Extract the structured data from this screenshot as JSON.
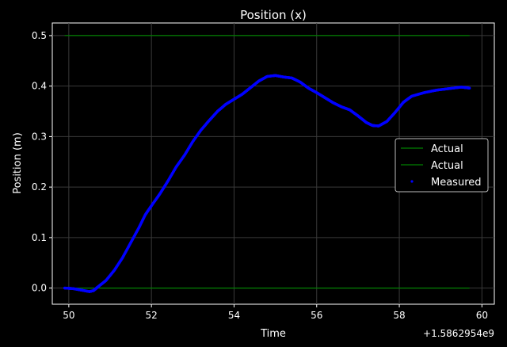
{
  "chart_data": {
    "type": "line",
    "title": "Position (x)",
    "xlabel": "Time",
    "ylabel": "Position (m)",
    "x_offset_label": "+1.5862954e9",
    "xlim": [
      49.6,
      60.3
    ],
    "ylim": [
      -0.032,
      0.525
    ],
    "xticks": [
      50,
      52,
      54,
      56,
      58,
      60
    ],
    "yticks": [
      0.0,
      0.1,
      0.2,
      0.3,
      0.4,
      0.5
    ],
    "ytick_labels": [
      "0.0",
      "0.1",
      "0.2",
      "0.3",
      "0.4",
      "0.5"
    ],
    "grid": true,
    "legend_position": "center-right",
    "series": [
      {
        "name": "Actual",
        "kind": "line",
        "color": "#008000",
        "x": [
          49.9,
          59.7
        ],
        "y": [
          0.5,
          0.5
        ]
      },
      {
        "name": "Actual",
        "kind": "line",
        "color": "#008000",
        "x": [
          49.9,
          59.7
        ],
        "y": [
          0.0,
          0.0
        ]
      },
      {
        "name": "Measured",
        "kind": "scatter",
        "color": "#0000ff",
        "x": [
          49.9,
          50.1,
          50.3,
          50.5,
          50.6,
          50.7,
          50.9,
          51.1,
          51.3,
          51.5,
          51.7,
          51.85,
          52.0,
          52.2,
          52.4,
          52.6,
          52.8,
          53.0,
          53.2,
          53.4,
          53.6,
          53.8,
          54.0,
          54.2,
          54.4,
          54.6,
          54.8,
          55.0,
          55.2,
          55.4,
          55.6,
          55.8,
          56.0,
          56.2,
          56.4,
          56.6,
          56.8,
          57.0,
          57.2,
          57.35,
          57.5,
          57.7,
          57.9,
          58.1,
          58.3,
          58.6,
          58.9,
          59.2,
          59.5,
          59.7
        ],
        "y": [
          0.0,
          -0.001,
          -0.004,
          -0.007,
          -0.005,
          0.002,
          0.015,
          0.035,
          0.06,
          0.09,
          0.12,
          0.145,
          0.163,
          0.186,
          0.212,
          0.24,
          0.263,
          0.29,
          0.313,
          0.332,
          0.35,
          0.364,
          0.374,
          0.384,
          0.397,
          0.41,
          0.419,
          0.421,
          0.418,
          0.416,
          0.408,
          0.396,
          0.387,
          0.377,
          0.367,
          0.359,
          0.353,
          0.341,
          0.328,
          0.322,
          0.321,
          0.33,
          0.348,
          0.368,
          0.38,
          0.387,
          0.392,
          0.395,
          0.398,
          0.396
        ]
      }
    ]
  }
}
